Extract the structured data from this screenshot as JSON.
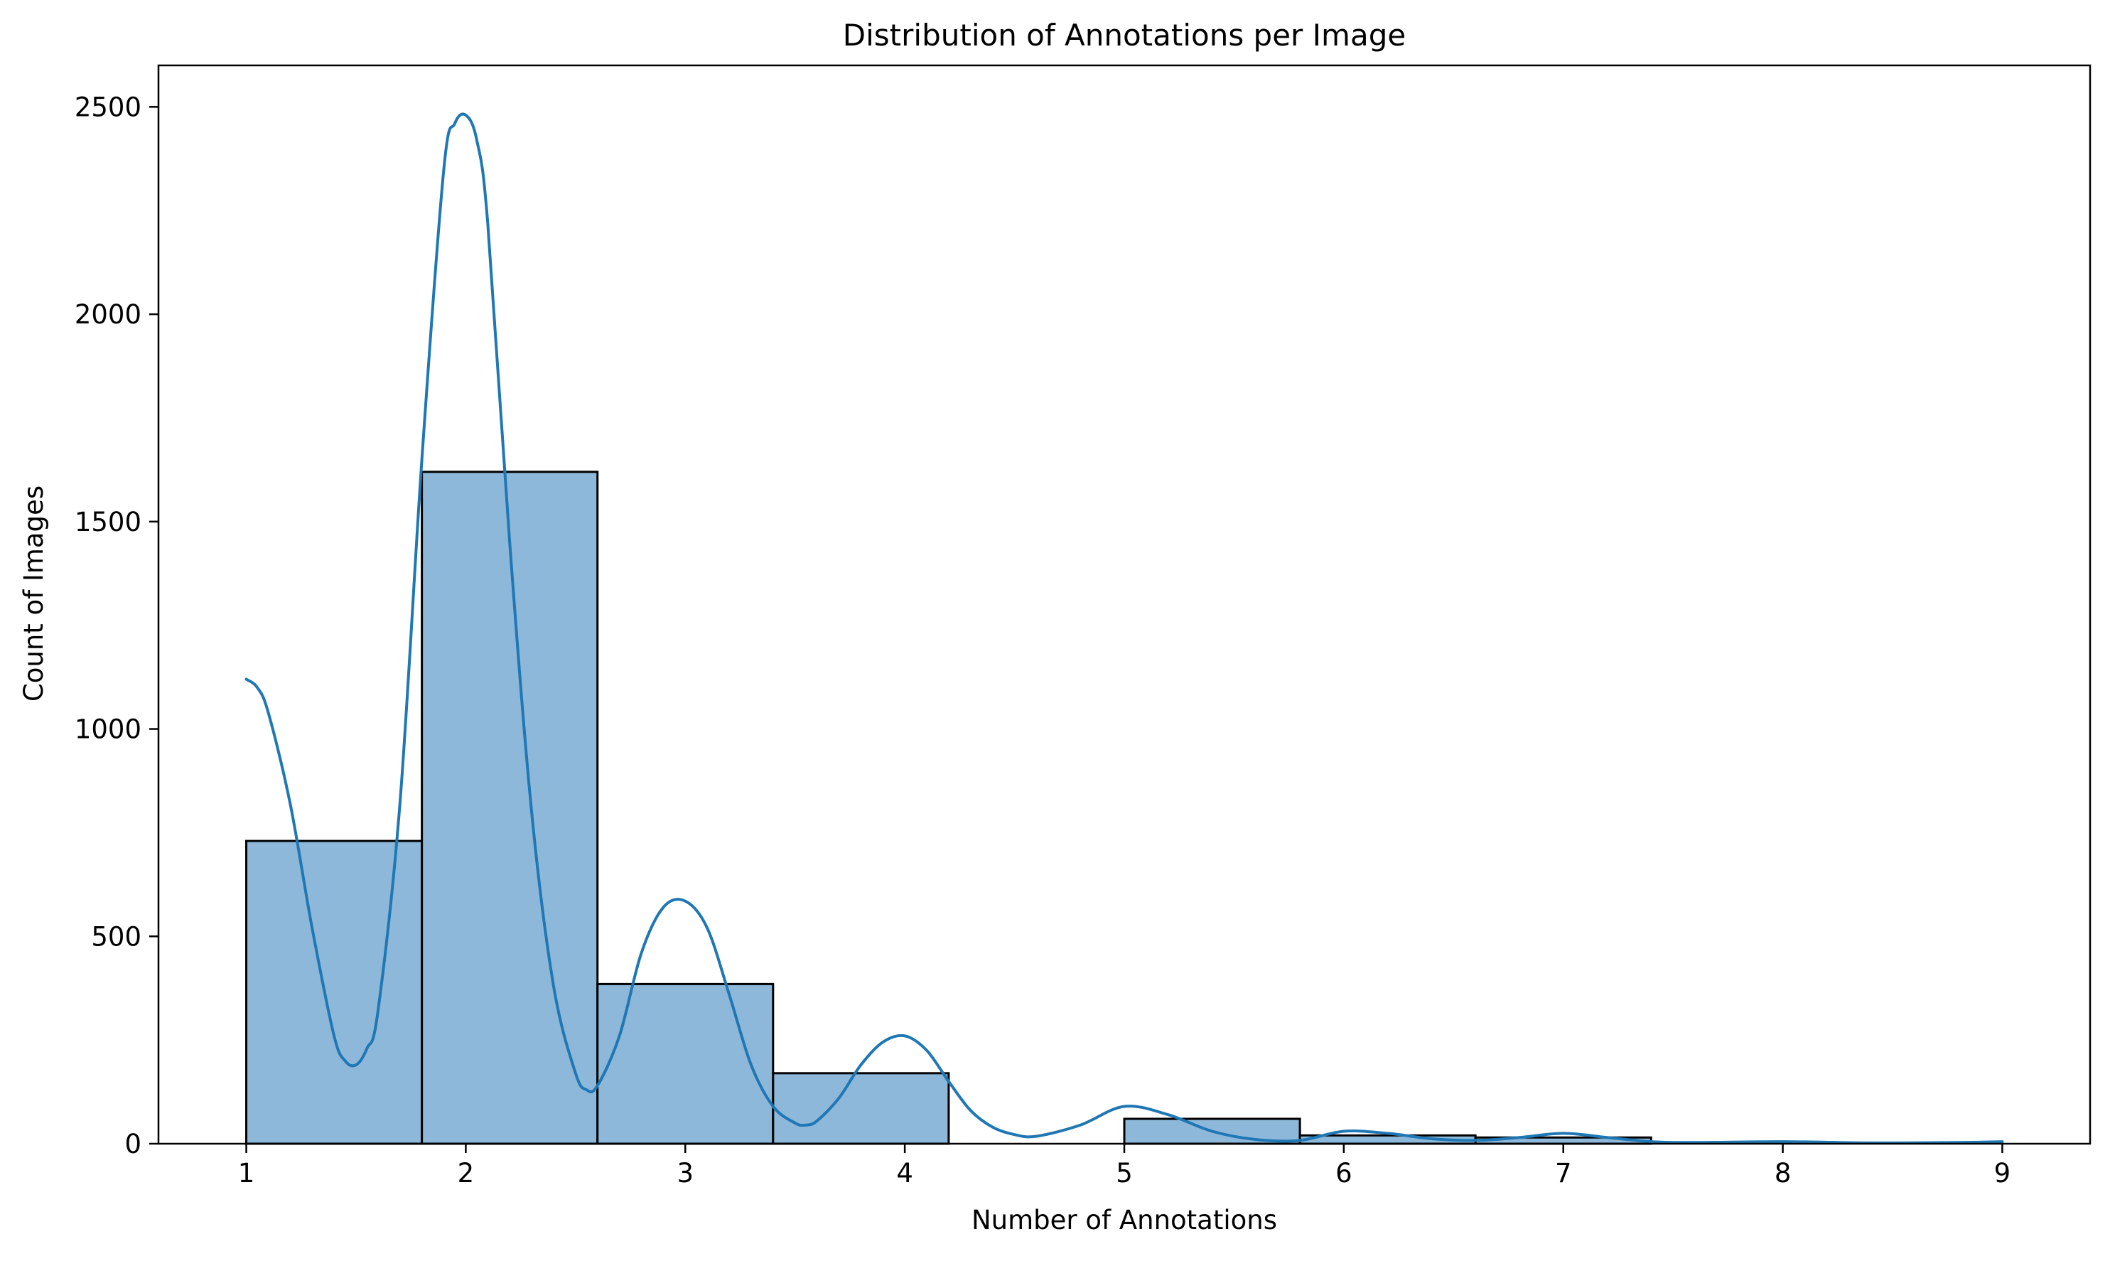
{
  "chart_data": {
    "type": "bar",
    "title": "Distribution of Annotations per Image",
    "xlabel": "Number of Annotations",
    "ylabel": "Count of Images",
    "xlim": [
      0.6,
      9.4
    ],
    "ylim": [
      0,
      2600
    ],
    "xticks": [
      1,
      2,
      3,
      4,
      5,
      6,
      7,
      8,
      9
    ],
    "yticks": [
      0,
      500,
      1000,
      1500,
      2000,
      2500
    ],
    "grid": false,
    "bins": [
      {
        "x0": 1.0,
        "x1": 1.8,
        "count": 730
      },
      {
        "x0": 1.8,
        "x1": 2.6,
        "count": 1620
      },
      {
        "x0": 2.6,
        "x1": 3.4,
        "count": 385
      },
      {
        "x0": 3.4,
        "x1": 4.2,
        "count": 170
      },
      {
        "x0": 4.2,
        "x1": 5.0,
        "count": 0
      },
      {
        "x0": 5.0,
        "x1": 5.8,
        "count": 60
      },
      {
        "x0": 5.8,
        "x1": 6.6,
        "count": 20
      },
      {
        "x0": 6.6,
        "x1": 7.4,
        "count": 15
      },
      {
        "x0": 7.4,
        "x1": 8.2,
        "count": 0
      },
      {
        "x0": 8.2,
        "x1": 9.0,
        "count": 0
      }
    ],
    "kde": {
      "x": [
        1.0,
        1.05,
        1.1,
        1.2,
        1.3,
        1.4,
        1.45,
        1.5,
        1.55,
        1.6,
        1.7,
        1.8,
        1.9,
        1.95,
        2.0,
        2.05,
        2.1,
        2.2,
        2.3,
        2.4,
        2.5,
        2.55,
        2.6,
        2.7,
        2.8,
        2.9,
        3.0,
        3.1,
        3.2,
        3.3,
        3.4,
        3.5,
        3.55,
        3.6,
        3.7,
        3.8,
        3.9,
        4.0,
        4.1,
        4.2,
        4.3,
        4.4,
        4.5,
        4.6,
        4.8,
        5.0,
        5.2,
        5.4,
        5.6,
        5.8,
        6.0,
        6.2,
        6.4,
        6.6,
        6.8,
        7.0,
        7.2,
        7.4,
        7.6,
        8.0,
        8.4,
        8.8,
        9.0
      ],
      "y": [
        1120,
        1100,
        1040,
        820,
        520,
        260,
        200,
        190,
        230,
        320,
        820,
        1650,
        2350,
        2460,
        2480,
        2420,
        2220,
        1450,
        800,
        380,
        170,
        130,
        140,
        260,
        460,
        570,
        585,
        520,
        360,
        190,
        90,
        50,
        45,
        55,
        110,
        190,
        245,
        260,
        225,
        150,
        80,
        40,
        22,
        18,
        45,
        90,
        70,
        30,
        10,
        8,
        30,
        25,
        12,
        8,
        15,
        25,
        15,
        5,
        3,
        5,
        2,
        3,
        5
      ]
    },
    "colors": {
      "bar_fill": "#8db8da",
      "bar_edge": "#000000",
      "kde_line": "#1f77b4"
    }
  }
}
